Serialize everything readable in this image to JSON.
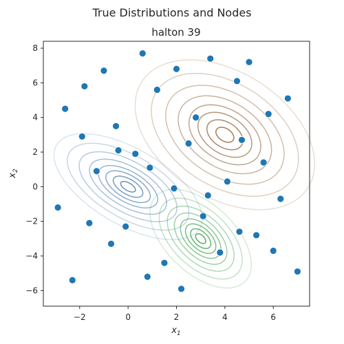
{
  "figure_title": "True Distributions  and Nodes",
  "chart_data": {
    "type": "scatter",
    "title": "halton 39",
    "xlabel": "x",
    "xlabel_sub": "1",
    "ylabel": "x",
    "ylabel_sub": "2",
    "xlim": [
      -3.5,
      7.5
    ],
    "ylim": [
      -6.9,
      8.4
    ],
    "xticks": [
      -2,
      0,
      2,
      4,
      6
    ],
    "yticks": [
      -6,
      -4,
      -2,
      0,
      2,
      4,
      6,
      8
    ],
    "grid": false,
    "point_color": "#1f77b4",
    "points": {
      "x": [
        -2.9,
        -2.3,
        -2.6,
        -1.8,
        -1.9,
        -1.6,
        -1.3,
        -1.0,
        -0.7,
        -0.5,
        -0.4,
        -0.1,
        0.3,
        0.6,
        0.8,
        0.9,
        1.2,
        1.5,
        1.9,
        2.0,
        2.2,
        2.5,
        2.8,
        3.1,
        3.3,
        3.4,
        3.8,
        4.1,
        4.5,
        4.6,
        4.7,
        5.0,
        5.3,
        5.6,
        5.8,
        6.0,
        6.3,
        6.6,
        7.0
      ],
      "y": [
        -1.2,
        -5.4,
        4.5,
        5.8,
        2.9,
        -2.1,
        0.9,
        6.7,
        -3.3,
        3.5,
        2.1,
        -2.3,
        1.9,
        7.7,
        -5.2,
        1.1,
        5.6,
        -4.4,
        -0.1,
        6.8,
        -5.9,
        2.5,
        4.0,
        -1.7,
        -0.5,
        7.4,
        -3.8,
        0.3,
        6.1,
        -2.6,
        2.7,
        7.2,
        -2.8,
        1.4,
        4.2,
        -3.7,
        -0.7,
        5.1,
        -4.9
      ]
    },
    "distributions": [
      {
        "mean": [
          0,
          0
        ],
        "cov": [
          [
            1.5,
            -0.9
          ],
          [
            -0.9,
            1.5
          ]
        ],
        "color": "#3f76a8"
      },
      {
        "mean": [
          4,
          3
        ],
        "cov": [
          [
            2.2,
            -1.0
          ],
          [
            -1.0,
            3.0
          ]
        ],
        "color": "#8c5a2b"
      },
      {
        "mean": [
          3,
          -3
        ],
        "cov": [
          [
            0.7,
            -0.5
          ],
          [
            -0.5,
            1.3
          ]
        ],
        "color": "#2a9a3a"
      }
    ]
  }
}
